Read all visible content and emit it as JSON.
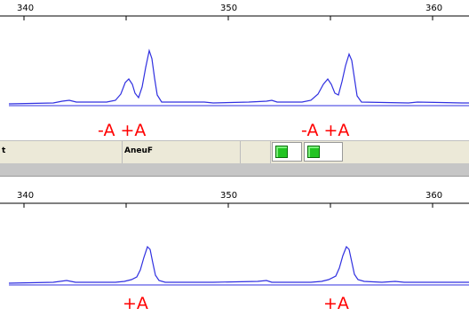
{
  "top_panel": {
    "ruler_labels": [
      "340",
      "350",
      "360"
    ],
    "annotations": [
      "-A +A",
      "-A +A"
    ]
  },
  "marker_bar": {
    "left_label": "t",
    "marker_name": "AneuF"
  },
  "bottom_panel": {
    "ruler_labels": [
      "340",
      "350",
      "360"
    ],
    "annotations": [
      "+A",
      "+A"
    ]
  },
  "colors": {
    "trace": "#3030e0",
    "annotation": "#ff0000",
    "bin_green": "#22c422"
  }
}
